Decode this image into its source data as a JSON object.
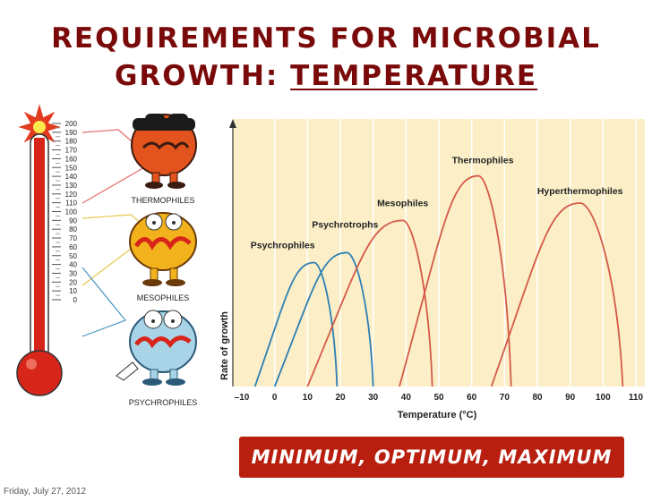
{
  "slide": {
    "title_line1": "REQUIREMENTS FOR MICROBIAL",
    "title_line2_prefix": "GROWTH: ",
    "title_line2_underlined": "TEMPERATURE",
    "banner": "MINIMUM, OPTIMUM, MAXIMUM",
    "date": "Friday, July 27, 2012"
  },
  "thermometer": {
    "scale": [
      "200",
      "190",
      "180",
      "170",
      "160",
      "150",
      "140",
      "130",
      "120",
      "110",
      "100",
      "90",
      "80",
      "70",
      "60",
      "50",
      "40",
      "30",
      "20",
      "10",
      "0"
    ],
    "labels": [
      "THERMOPHILES",
      "MESOPHILES",
      "PSYCHROPHILES"
    ]
  },
  "colors": {
    "title": "#7a0a0a",
    "banner": "#b81f0f",
    "chart_bg": "#fcefc7",
    "grid": "#ffffff",
    "blue": "#2d7fb5",
    "red": "#d45a4a"
  },
  "chart_data": {
    "type": "line",
    "title": "",
    "xlabel": "Temperature (°C)",
    "ylabel": "Rate of growth",
    "xlim": [
      -10,
      110
    ],
    "ylim": [
      0,
      1
    ],
    "x_ticks": [
      "–10",
      "0",
      "10",
      "20",
      "30",
      "40",
      "50",
      "60",
      "70",
      "80",
      "90",
      "100",
      "110"
    ],
    "x_tick_values": [
      -10,
      0,
      10,
      20,
      30,
      40,
      50,
      60,
      70,
      80,
      90,
      100,
      110
    ],
    "series": [
      {
        "name": "Psychrophiles",
        "color": "blue",
        "x": [
          -6,
          12,
          19
        ],
        "y": [
          0,
          0.5,
          0
        ]
      },
      {
        "name": "Psychrotrophs",
        "color": "blue",
        "x": [
          0,
          22,
          30
        ],
        "y": [
          0,
          0.54,
          0
        ]
      },
      {
        "name": "Mesophiles",
        "color": "red",
        "x": [
          10,
          39,
          48
        ],
        "y": [
          0,
          0.67,
          0
        ]
      },
      {
        "name": "Thermophiles",
        "color": "red",
        "x": [
          38,
          62,
          72
        ],
        "y": [
          0,
          0.85,
          0
        ]
      },
      {
        "name": "Hyperthermophiles",
        "color": "red",
        "x": [
          66,
          93,
          106
        ],
        "y": [
          0,
          0.74,
          0
        ]
      }
    ]
  }
}
